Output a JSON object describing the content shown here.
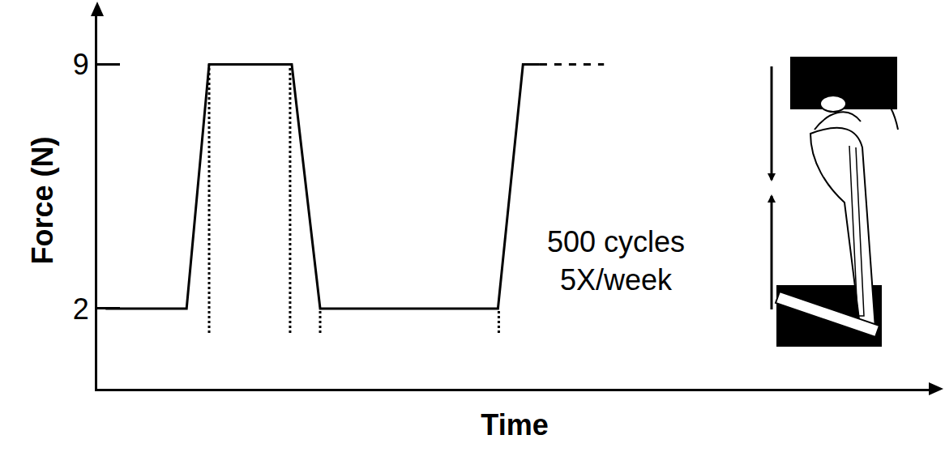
{
  "chart_data": {
    "type": "line",
    "xlabel": "Time",
    "ylabel": "Force (N)",
    "xlim": [
      0,
      100
    ],
    "ylim": [
      -0.3,
      10.5
    ],
    "yticks": [
      2,
      9
    ],
    "tick_labels": "y",
    "grid": false,
    "series": [
      {
        "x": [
          1,
          10.7,
          13.4,
          23.3,
          26.7,
          48,
          51,
          53
        ],
        "values": [
          2,
          2,
          9,
          9,
          2,
          2,
          9,
          9
        ],
        "color": "#000000",
        "line_style": "solid"
      },
      {
        "x": [
          53,
          60.7
        ],
        "values": [
          9,
          9
        ],
        "color": "#000000",
        "line_style": "dashed"
      }
    ],
    "reference_lines": [
      {
        "x": 13.4,
        "y": [
          1.3,
          9
        ],
        "line_style": "dotted"
      },
      {
        "x": 23.1,
        "y": [
          1.3,
          9
        ],
        "line_style": "dotted"
      },
      {
        "x": 26.7,
        "y": [
          1.3,
          2
        ],
        "line_style": "dotted"
      },
      {
        "x": 48.1,
        "y": [
          1.3,
          2
        ],
        "line_style": "dotted"
      }
    ],
    "annotations": [
      {
        "lines": [
          "500 cycles",
          "5X/week"
        ]
      }
    ]
  }
}
